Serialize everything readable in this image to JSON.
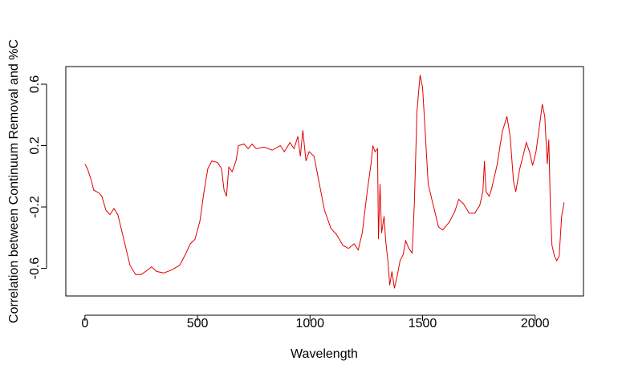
{
  "chart_data": {
    "type": "line",
    "x_label": "Wavelength",
    "y_label": "Correlation between Continuum Removal and %C",
    "xlim": [
      -85,
      2215
    ],
    "ylim": [
      -0.78,
      0.715
    ],
    "xticks": [
      0,
      500,
      1000,
      1500,
      2000
    ],
    "yticks": [
      -0.6,
      -0.2,
      0.2,
      0.6
    ],
    "series": [
      {
        "color": "#e00000",
        "x": [
          0,
          11,
          29,
          39,
          64,
          75,
          93,
          111,
          129,
          146,
          161,
          179,
          200,
          225,
          250,
          279,
          296,
          318,
          350,
          386,
          421,
          446,
          468,
          489,
          511,
          529,
          546,
          564,
          589,
          607,
          618,
          629,
          639,
          654,
          671,
          682,
          707,
          725,
          743,
          761,
          796,
          832,
          868,
          886,
          911,
          929,
          946,
          957,
          968,
          982,
          996,
          1018,
          1039,
          1064,
          1093,
          1118,
          1146,
          1171,
          1196,
          1214,
          1232,
          1254,
          1271,
          1279,
          1289,
          1300,
          1304,
          1311,
          1318,
          1329,
          1336,
          1346,
          1354,
          1364,
          1375,
          1386,
          1400,
          1414,
          1425,
          1439,
          1454,
          1464,
          1475,
          1489,
          1500,
          1511,
          1525,
          1546,
          1571,
          1589,
          1618,
          1643,
          1661,
          1682,
          1707,
          1732,
          1754,
          1768,
          1775,
          1782,
          1796,
          1807,
          1832,
          1854,
          1875,
          1889,
          1904,
          1914,
          1932,
          1946,
          1961,
          1975,
          1989,
          2004,
          2018,
          2032,
          2043,
          2054,
          2061,
          2068,
          2075,
          2086,
          2096,
          2107,
          2118,
          2129
        ],
        "values": [
          0.08,
          0.05,
          -0.03,
          -0.09,
          -0.11,
          -0.13,
          -0.22,
          -0.25,
          -0.21,
          -0.25,
          -0.34,
          -0.45,
          -0.58,
          -0.64,
          -0.64,
          -0.61,
          -0.59,
          -0.62,
          -0.63,
          -0.61,
          -0.58,
          -0.51,
          -0.44,
          -0.41,
          -0.29,
          -0.1,
          0.05,
          0.1,
          0.09,
          0.05,
          -0.09,
          -0.13,
          0.06,
          0.03,
          0.1,
          0.2,
          0.21,
          0.18,
          0.21,
          0.18,
          0.19,
          0.17,
          0.2,
          0.16,
          0.22,
          0.18,
          0.26,
          0.13,
          0.3,
          0.1,
          0.16,
          0.13,
          -0.03,
          -0.22,
          -0.34,
          -0.38,
          -0.45,
          -0.47,
          -0.44,
          -0.48,
          -0.37,
          -0.1,
          0.08,
          0.2,
          0.16,
          0.18,
          -0.41,
          -0.05,
          -0.37,
          -0.26,
          -0.42,
          -0.55,
          -0.71,
          -0.62,
          -0.73,
          -0.66,
          -0.55,
          -0.51,
          -0.42,
          -0.47,
          -0.5,
          -0.16,
          0.42,
          0.66,
          0.58,
          0.31,
          -0.05,
          -0.18,
          -0.33,
          -0.35,
          -0.3,
          -0.23,
          -0.15,
          -0.18,
          -0.24,
          -0.24,
          -0.19,
          -0.1,
          0.1,
          -0.1,
          -0.13,
          -0.08,
          0.08,
          0.29,
          0.39,
          0.26,
          -0.03,
          -0.1,
          0.05,
          0.13,
          0.22,
          0.16,
          0.07,
          0.16,
          0.31,
          0.47,
          0.39,
          0.08,
          0.24,
          -0.21,
          -0.45,
          -0.52,
          -0.55,
          -0.52,
          -0.26,
          -0.17
        ]
      }
    ]
  }
}
